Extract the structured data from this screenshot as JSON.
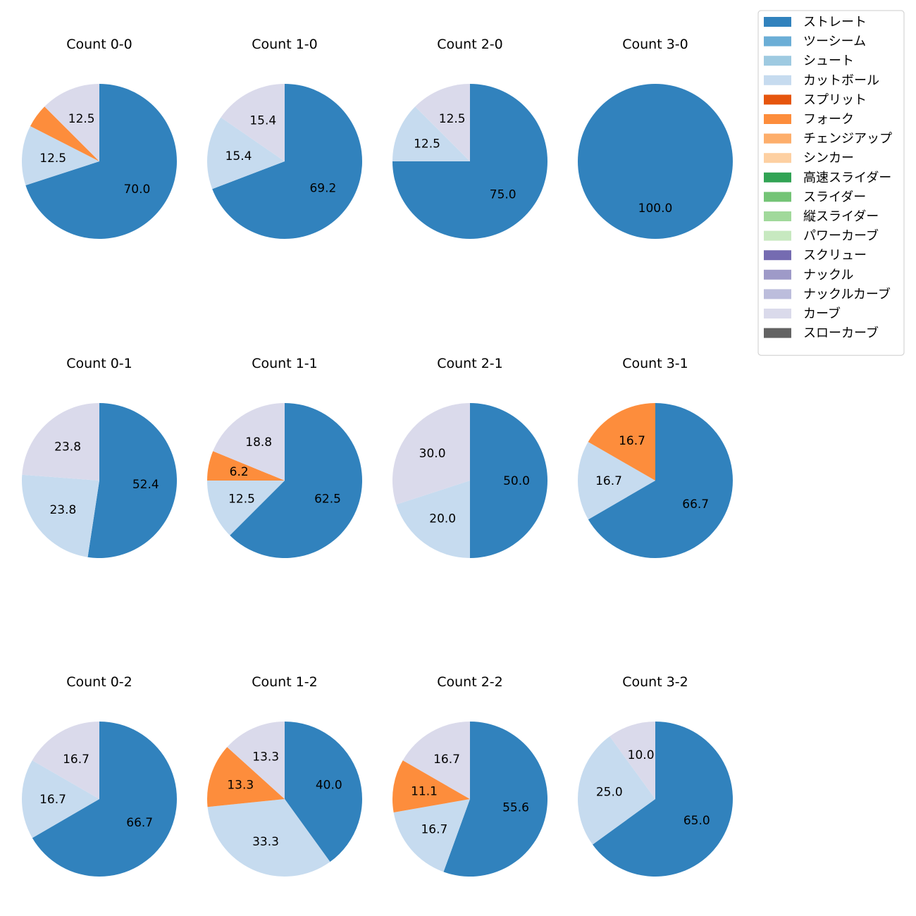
{
  "chart_data": {
    "type": "pie",
    "legend": {
      "placement": "top-right",
      "entries": [
        {
          "name": "ストレート",
          "color": "#3182bd"
        },
        {
          "name": "ツーシーム",
          "color": "#6baed6"
        },
        {
          "name": "シュート",
          "color": "#9ecae1"
        },
        {
          "name": "カットボール",
          "color": "#c6dbef"
        },
        {
          "name": "スプリット",
          "color": "#e6550d"
        },
        {
          "name": "フォーク",
          "color": "#fd8d3c"
        },
        {
          "name": "チェンジアップ",
          "color": "#fdae6b"
        },
        {
          "name": "シンカー",
          "color": "#fdd0a2"
        },
        {
          "name": "高速スライダー",
          "color": "#31a354"
        },
        {
          "name": "スライダー",
          "color": "#74c476"
        },
        {
          "name": "縦スライダー",
          "color": "#a1d99b"
        },
        {
          "name": "パワーカーブ",
          "color": "#c7e9c0"
        },
        {
          "name": "スクリュー",
          "color": "#756bb1"
        },
        {
          "name": "ナックル",
          "color": "#9e9ac8"
        },
        {
          "name": "ナックルカーブ",
          "color": "#bcbddc"
        },
        {
          "name": "カーブ",
          "color": "#dadaeb"
        },
        {
          "name": "スローカーブ",
          "color": "#636363"
        }
      ]
    },
    "charts": [
      {
        "title": "Count 0-0",
        "slices": [
          {
            "pitch": "ストレート",
            "value": 70.0
          },
          {
            "pitch": "カットボール",
            "value": 12.5
          },
          {
            "pitch": "フォーク",
            "value": 5.0
          },
          {
            "pitch": "カーブ",
            "value": 12.5
          }
        ]
      },
      {
        "title": "Count 1-0",
        "slices": [
          {
            "pitch": "ストレート",
            "value": 69.2
          },
          {
            "pitch": "カットボール",
            "value": 15.4
          },
          {
            "pitch": "カーブ",
            "value": 15.4
          }
        ]
      },
      {
        "title": "Count 2-0",
        "slices": [
          {
            "pitch": "ストレート",
            "value": 75.0
          },
          {
            "pitch": "カットボール",
            "value": 12.5
          },
          {
            "pitch": "カーブ",
            "value": 12.5
          }
        ]
      },
      {
        "title": "Count 3-0",
        "slices": [
          {
            "pitch": "ストレート",
            "value": 100.0
          }
        ]
      },
      {
        "title": "Count 0-1",
        "slices": [
          {
            "pitch": "ストレート",
            "value": 52.4
          },
          {
            "pitch": "カットボール",
            "value": 23.8
          },
          {
            "pitch": "カーブ",
            "value": 23.8
          }
        ]
      },
      {
        "title": "Count 1-1",
        "slices": [
          {
            "pitch": "ストレート",
            "value": 62.5
          },
          {
            "pitch": "カットボール",
            "value": 12.5
          },
          {
            "pitch": "フォーク",
            "value": 6.2
          },
          {
            "pitch": "カーブ",
            "value": 18.8
          }
        ]
      },
      {
        "title": "Count 2-1",
        "slices": [
          {
            "pitch": "ストレート",
            "value": 50.0
          },
          {
            "pitch": "カットボール",
            "value": 20.0
          },
          {
            "pitch": "カーブ",
            "value": 30.0
          }
        ]
      },
      {
        "title": "Count 3-1",
        "slices": [
          {
            "pitch": "ストレート",
            "value": 66.7
          },
          {
            "pitch": "カットボール",
            "value": 16.7
          },
          {
            "pitch": "フォーク",
            "value": 16.7
          }
        ]
      },
      {
        "title": "Count 0-2",
        "slices": [
          {
            "pitch": "ストレート",
            "value": 66.7
          },
          {
            "pitch": "カットボール",
            "value": 16.7
          },
          {
            "pitch": "カーブ",
            "value": 16.7
          }
        ]
      },
      {
        "title": "Count 1-2",
        "slices": [
          {
            "pitch": "ストレート",
            "value": 40.0
          },
          {
            "pitch": "カットボール",
            "value": 33.3
          },
          {
            "pitch": "フォーク",
            "value": 13.3
          },
          {
            "pitch": "カーブ",
            "value": 13.3
          }
        ]
      },
      {
        "title": "Count 2-2",
        "slices": [
          {
            "pitch": "ストレート",
            "value": 55.6
          },
          {
            "pitch": "カットボール",
            "value": 16.7
          },
          {
            "pitch": "フォーク",
            "value": 11.1
          },
          {
            "pitch": "カーブ",
            "value": 16.7
          }
        ]
      },
      {
        "title": "Count 3-2",
        "slices": [
          {
            "pitch": "ストレート",
            "value": 65.0
          },
          {
            "pitch": "カットボール",
            "value": 25.0
          },
          {
            "pitch": "カーブ",
            "value": 10.0
          }
        ]
      }
    ]
  }
}
